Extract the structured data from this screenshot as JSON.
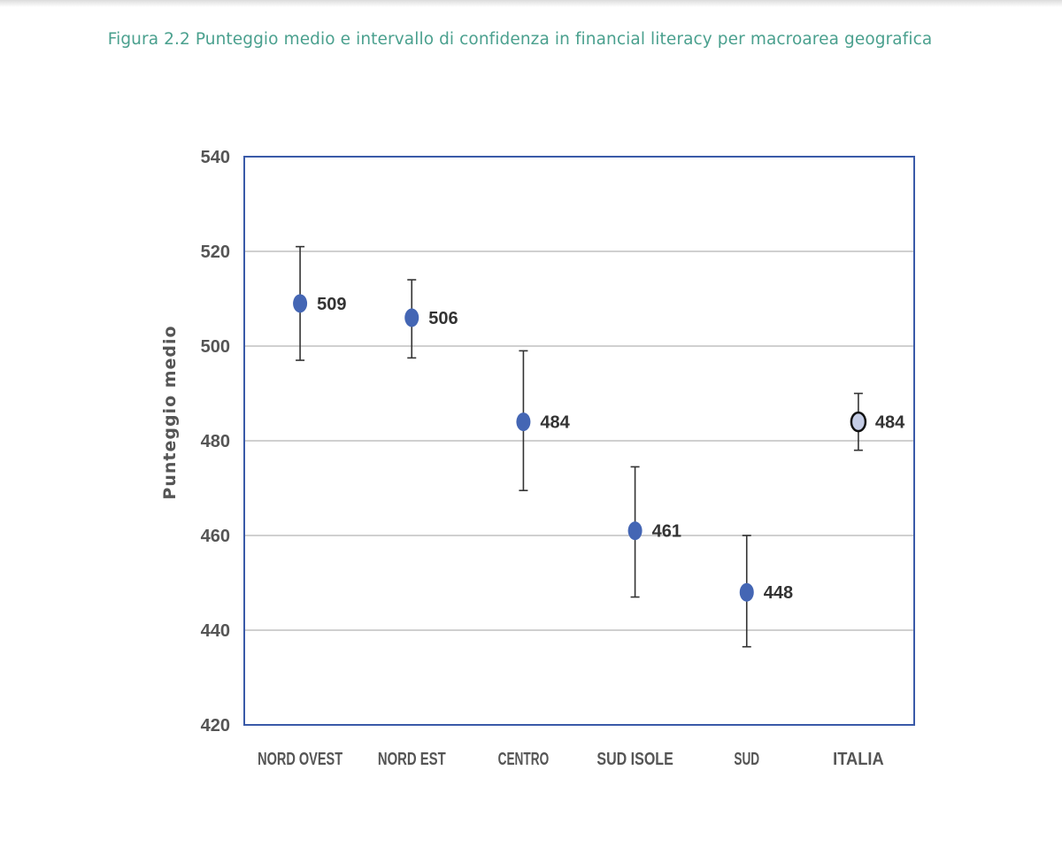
{
  "figure_title": "Figura 2.2 Punteggio medio e intervallo di confidenza in financial literacy per macroarea geografica",
  "chart_data": {
    "type": "scatter",
    "title": "Figura 2.2 Punteggio medio e intervallo di confidenza in financial literacy per macroarea geografica",
    "xlabel": "",
    "ylabel": "Punteggio medio",
    "ylim": [
      420,
      540
    ],
    "yticks": [
      420,
      440,
      460,
      480,
      500,
      520,
      540
    ],
    "grid": true,
    "categories": [
      "NORD OVEST",
      "NORD EST",
      "CENTRO",
      "SUD ISOLE",
      "SUD",
      "ITALIA"
    ],
    "values": [
      509,
      506,
      484,
      461,
      448,
      484
    ],
    "ci_low": [
      497,
      497.5,
      469.5,
      447,
      436.5,
      478
    ],
    "ci_high": [
      521,
      514,
      499,
      474.5,
      460,
      490
    ],
    "labels": [
      "509",
      "506",
      "484",
      "461",
      "448",
      "484"
    ],
    "highlight_index": 5,
    "colors": {
      "point": "#4466b4",
      "highlight_point": "#c5cde6",
      "highlight_edge": "#111111",
      "frame": "#3a5aa8",
      "grid": "#d0d0d0",
      "errorbar": "#333333"
    }
  }
}
